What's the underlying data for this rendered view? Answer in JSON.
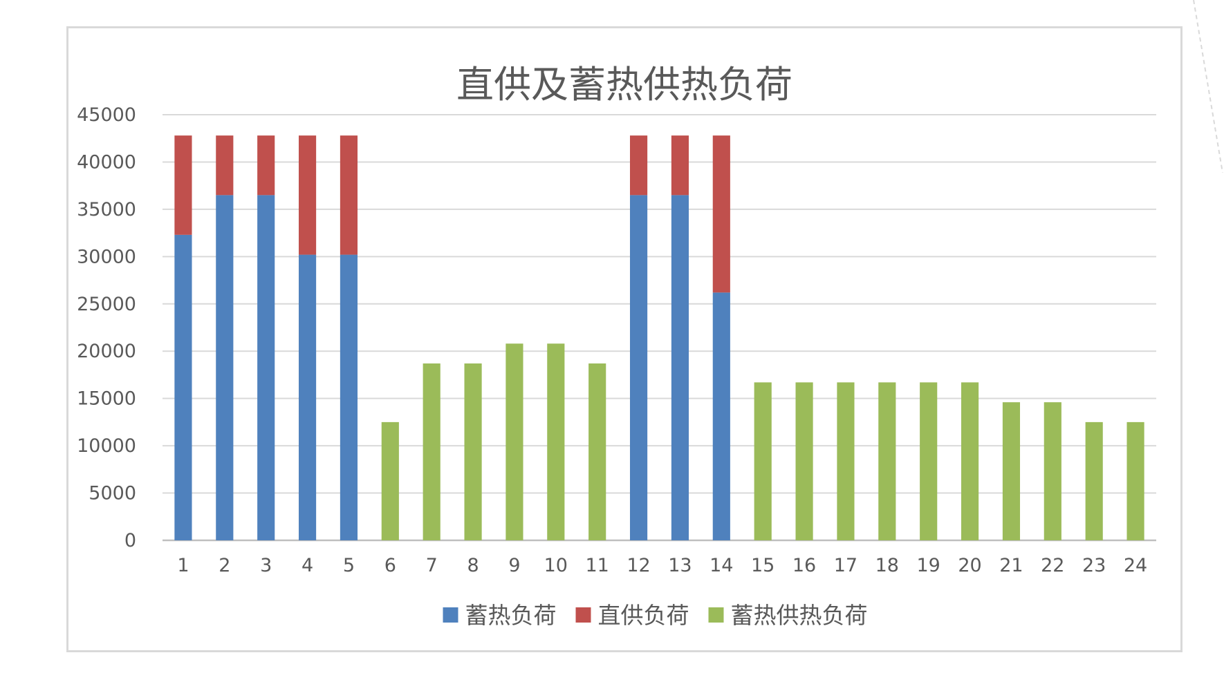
{
  "chart_data": {
    "type": "bar",
    "stacked": true,
    "title": "直供及蓄热供热负荷",
    "xlabel": "",
    "ylabel": "",
    "categories": [
      "1",
      "2",
      "3",
      "4",
      "5",
      "6",
      "7",
      "8",
      "9",
      "10",
      "11",
      "12",
      "13",
      "14",
      "15",
      "16",
      "17",
      "18",
      "19",
      "20",
      "21",
      "22",
      "23",
      "24"
    ],
    "ylim": [
      0,
      45000
    ],
    "yticks": [
      0,
      5000,
      10000,
      15000,
      20000,
      25000,
      30000,
      35000,
      40000,
      45000
    ],
    "grid": true,
    "legend_position": "bottom",
    "series": [
      {
        "name": "蓄热负荷",
        "color": "#4f81bd",
        "values": [
          32300,
          36500,
          36500,
          30200,
          30200,
          0,
          0,
          0,
          0,
          0,
          0,
          36500,
          36500,
          26200,
          0,
          0,
          0,
          0,
          0,
          0,
          0,
          0,
          0,
          0
        ]
      },
      {
        "name": "直供负荷",
        "color": "#c0504d",
        "values": [
          10500,
          6300,
          6300,
          12600,
          12600,
          0,
          0,
          0,
          0,
          0,
          0,
          6300,
          6300,
          16600,
          0,
          0,
          0,
          0,
          0,
          0,
          0,
          0,
          0,
          0
        ]
      },
      {
        "name": "蓄热供热负荷",
        "color": "#9bbb59",
        "values": [
          0,
          0,
          0,
          0,
          0,
          12500,
          18700,
          18700,
          20800,
          20800,
          18700,
          0,
          0,
          0,
          16700,
          16700,
          16700,
          16700,
          16700,
          16700,
          14600,
          14600,
          12500,
          12500
        ]
      }
    ]
  }
}
